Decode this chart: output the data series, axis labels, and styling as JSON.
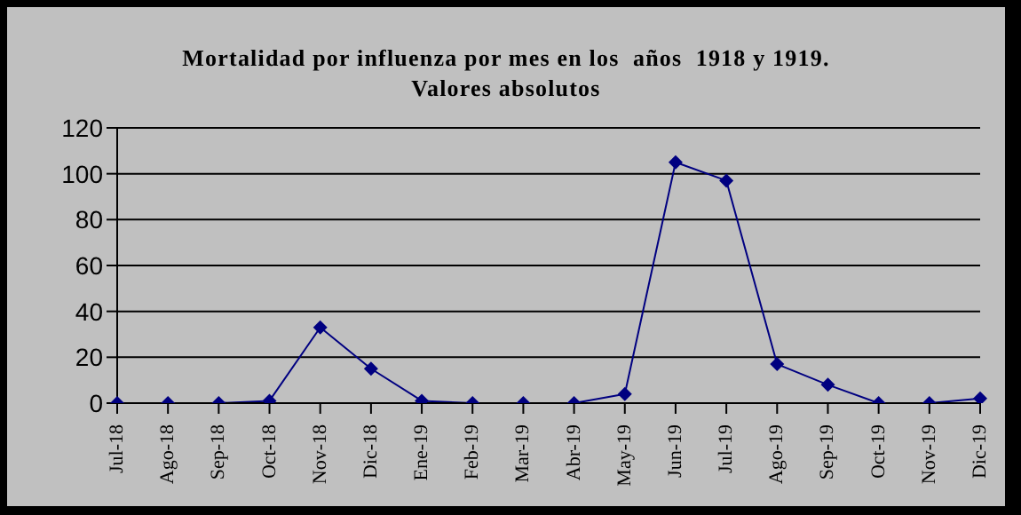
{
  "chart_data": {
    "type": "line",
    "title": "Mortalidad por influenza por mes en los  años  1918 y 1919.\nValores absolutos",
    "categories": [
      "Jul-18",
      "Ago-18",
      "Sep-18",
      "Oct-18",
      "Nov-18",
      "Dic-18",
      "Ene-19",
      "Feb-19",
      "Mar-19",
      "Abr-19",
      "May-19",
      "Jun-19",
      "Jul-19",
      "Ago-19",
      "Sep-19",
      "Oct-19",
      "Nov-19",
      "Dic-19"
    ],
    "series": [
      {
        "color": "#000080",
        "values": [
          0,
          0,
          0,
          1,
          33,
          15,
          1,
          0,
          0,
          0,
          4,
          105,
          97,
          17,
          8,
          0,
          0,
          2
        ]
      }
    ],
    "ylim": [
      0,
      120
    ],
    "yticks": [
      0,
      20,
      40,
      60,
      80,
      100,
      120
    ],
    "grid": "y",
    "legend": false,
    "marker": "diamond",
    "line_style": "solid"
  }
}
